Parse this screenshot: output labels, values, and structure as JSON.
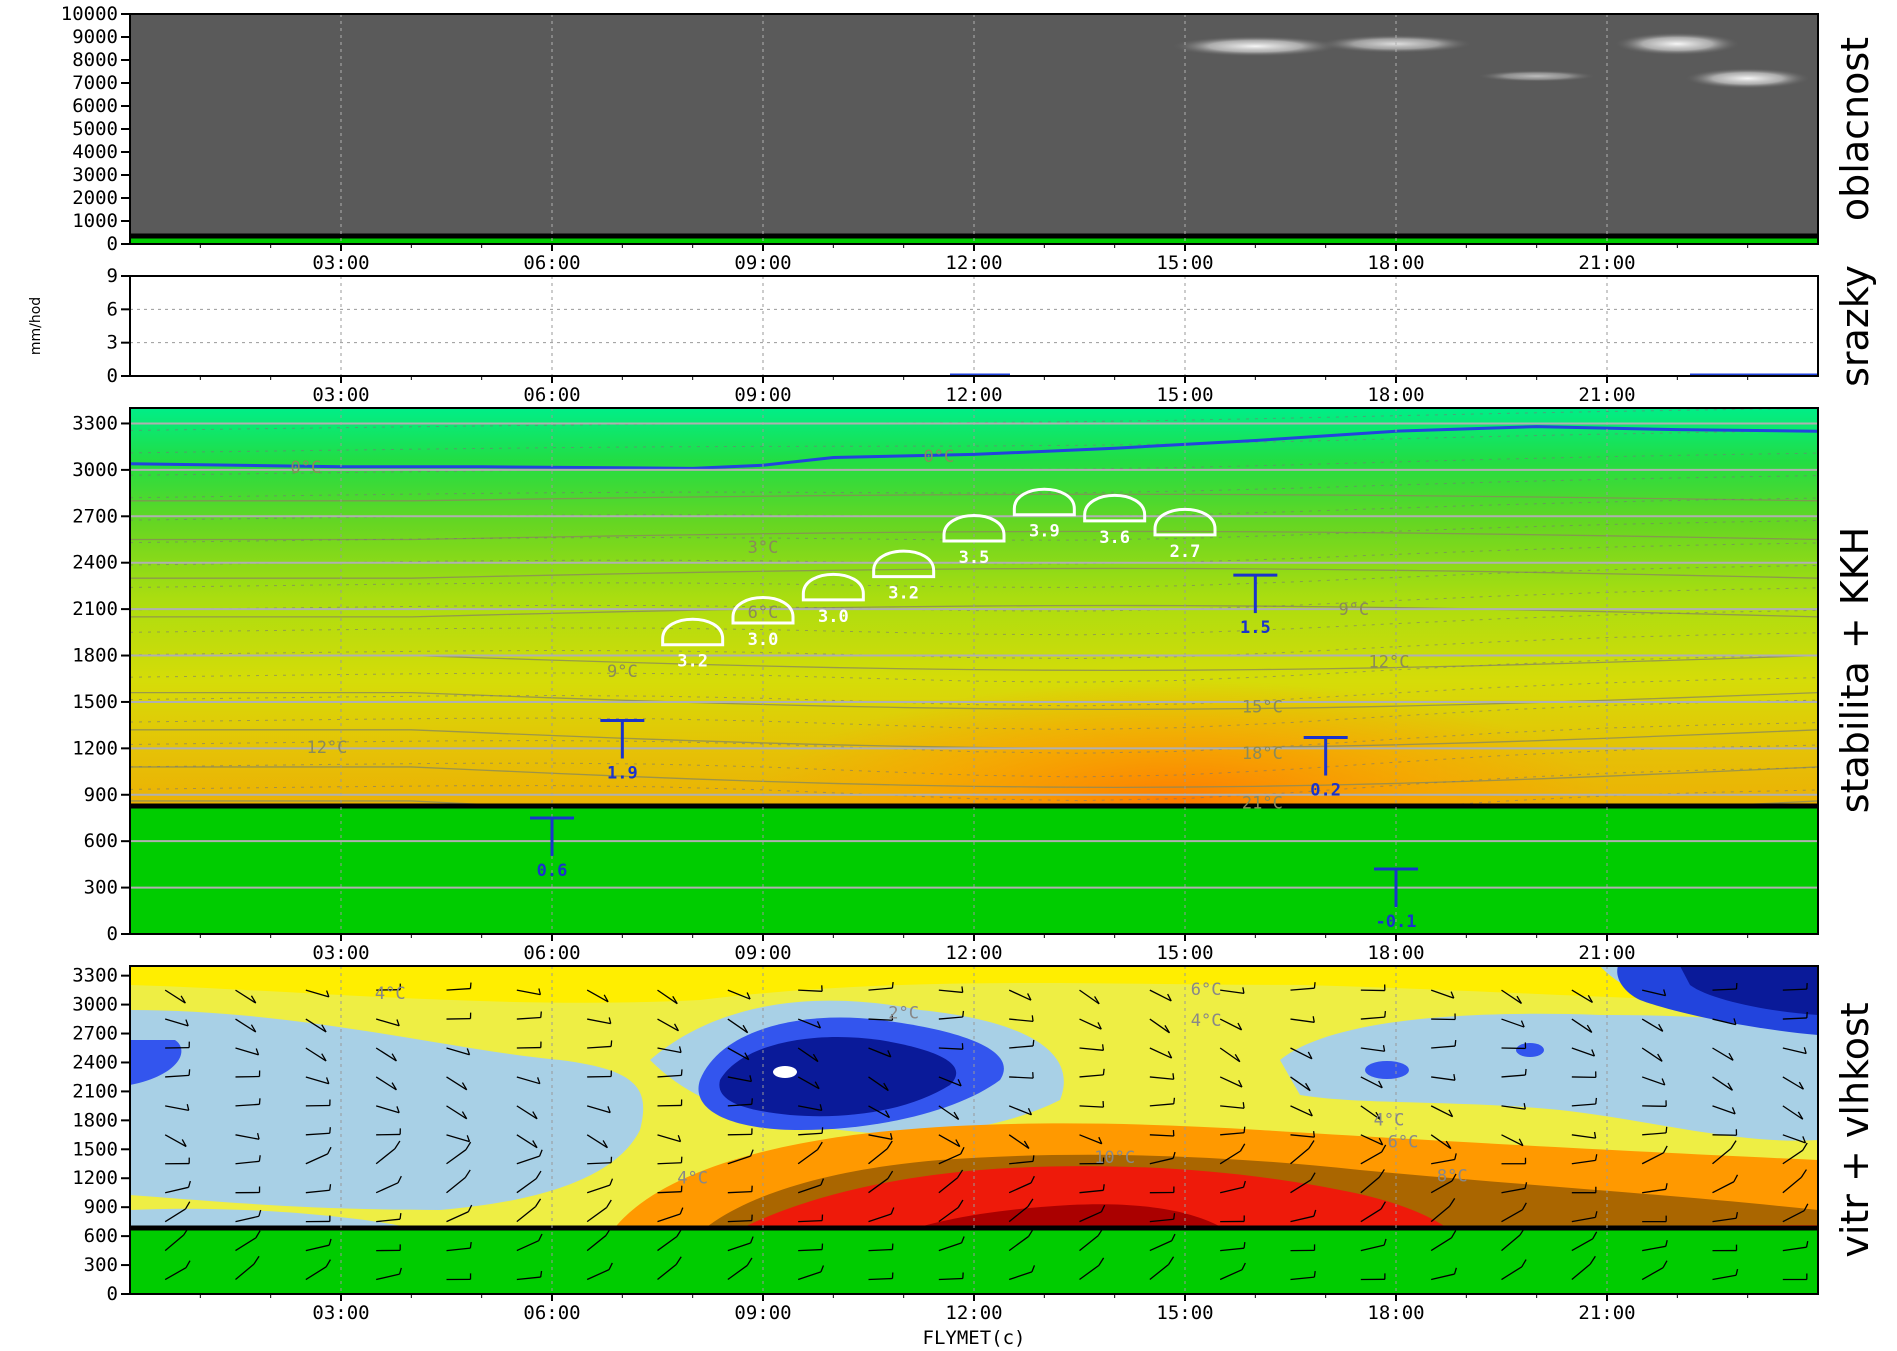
{
  "footer": "FLYMET(c)",
  "colors": {
    "cloud_bg": "#5a5a5a",
    "ground": "#00cc00",
    "iso0": "#2244dd",
    "kkh_blue": "#1a33cc",
    "kkh_white": "#ffffff"
  },
  "chart_data": [
    {
      "type": "heatmap",
      "title": "oblacnost",
      "ylabel": "",
      "ylim": [
        0,
        10000
      ],
      "yticks": [
        "0",
        "1000",
        "2000",
        "3000",
        "4000",
        "5000",
        "6000",
        "7000",
        "8000",
        "9000",
        "10000"
      ],
      "xticks": [
        "03:00",
        "06:00",
        "09:00",
        "12:00",
        "15:00",
        "18:00",
        "21:00"
      ],
      "xlim_hours": [
        0,
        24
      ],
      "ground_m": 400,
      "cloud_patches": [
        {
          "x": 16.0,
          "y": 8600,
          "w": 2.4,
          "h": 900,
          "intensity": 0.95
        },
        {
          "x": 18.0,
          "y": 8700,
          "w": 2.2,
          "h": 800,
          "intensity": 0.8
        },
        {
          "x": 20.0,
          "y": 7300,
          "w": 1.7,
          "h": 500,
          "intensity": 0.6
        },
        {
          "x": 22.0,
          "y": 8700,
          "w": 1.8,
          "h": 1000,
          "intensity": 0.95
        },
        {
          "x": 23.0,
          "y": 7200,
          "w": 1.8,
          "h": 900,
          "intensity": 0.95
        }
      ]
    },
    {
      "type": "line",
      "title": "srazky",
      "ylabel": "mm/hod",
      "ylim": [
        0,
        9
      ],
      "yticks": [
        "0",
        "3",
        "6",
        "9"
      ],
      "xticks": [
        "03:00",
        "06:00",
        "09:00",
        "12:00",
        "15:00",
        "18:00",
        "21:00"
      ],
      "values": []
    },
    {
      "type": "heatmap",
      "title": "stabilita + KKH",
      "ylim": [
        0,
        3400
      ],
      "yticks": [
        "0",
        "300",
        "600",
        "900",
        "1200",
        "1500",
        "1800",
        "2100",
        "2400",
        "2700",
        "3000",
        "3300"
      ],
      "xticks": [
        "03:00",
        "06:00",
        "09:00",
        "12:00",
        "15:00",
        "18:00",
        "21:00"
      ],
      "ground_m": 400,
      "zero_isotherm": [
        [
          0,
          3040
        ],
        [
          3,
          3020
        ],
        [
          5,
          3020
        ],
        [
          8,
          3010
        ],
        [
          9,
          3030
        ],
        [
          10,
          3080
        ],
        [
          12,
          3100
        ],
        [
          14,
          3140
        ],
        [
          16,
          3190
        ],
        [
          18,
          3250
        ],
        [
          20,
          3280
        ],
        [
          22,
          3260
        ],
        [
          24,
          3250
        ]
      ],
      "isotherm_labels": [
        {
          "x": 2.5,
          "y": 3020,
          "text": "0°C"
        },
        {
          "x": 11.5,
          "y": 3090,
          "text": "0°C"
        },
        {
          "x": 9.0,
          "y": 2500,
          "text": "3°C"
        },
        {
          "x": 9.0,
          "y": 2080,
          "text": "6°C"
        },
        {
          "x": 17.4,
          "y": 2100,
          "text": "9°C"
        },
        {
          "x": 7.0,
          "y": 1700,
          "text": "9°C"
        },
        {
          "x": 17.9,
          "y": 1760,
          "text": "12°C"
        },
        {
          "x": 2.8,
          "y": 1210,
          "text": "12°C"
        },
        {
          "x": 16.1,
          "y": 1470,
          "text": "15°C"
        },
        {
          "x": 16.1,
          "y": 1170,
          "text": "18°C"
        },
        {
          "x": 16.1,
          "y": 850,
          "text": "21°C"
        }
      ],
      "cumulus": [
        {
          "x": 8.0,
          "base": 1870,
          "value": "3.2"
        },
        {
          "x": 9.0,
          "base": 2010,
          "value": "3.0"
        },
        {
          "x": 10.0,
          "base": 2160,
          "value": "3.0"
        },
        {
          "x": 11.0,
          "base": 2310,
          "value": "3.2"
        },
        {
          "x": 12.0,
          "base": 2540,
          "value": "3.5"
        },
        {
          "x": 13.0,
          "base": 2710,
          "value": "3.9"
        },
        {
          "x": 14.0,
          "base": 2670,
          "value": "3.6"
        },
        {
          "x": 15.0,
          "base": 2580,
          "value": "2.7"
        }
      ],
      "thermals": [
        {
          "x": 6.0,
          "top": 750,
          "value": "0.6"
        },
        {
          "x": 7.0,
          "top": 1380,
          "value": "1.9"
        },
        {
          "x": 16.0,
          "top": 2320,
          "value": "1.5"
        },
        {
          "x": 17.0,
          "top": 1270,
          "value": "0.2"
        },
        {
          "x": 18.0,
          "top": 420,
          "value": "-0.1"
        }
      ]
    },
    {
      "type": "heatmap",
      "title": "vitr + vlhkost",
      "ylim": [
        0,
        3400
      ],
      "yticks": [
        "0",
        "300",
        "600",
        "900",
        "1200",
        "1500",
        "1800",
        "2100",
        "2400",
        "2700",
        "3000",
        "3300"
      ],
      "xticks": [
        "03:00",
        "06:00",
        "09:00",
        "12:00",
        "15:00",
        "18:00",
        "21:00"
      ],
      "ground_m": 400,
      "contour_labels": [
        {
          "x": 3.7,
          "y": 3120,
          "text": "4°C"
        },
        {
          "x": 11.0,
          "y": 2920,
          "text": "2°C"
        },
        {
          "x": 15.3,
          "y": 3160,
          "text": "6°C"
        },
        {
          "x": 15.3,
          "y": 2840,
          "text": "4°C"
        },
        {
          "x": 17.9,
          "y": 1810,
          "text": "4°C"
        },
        {
          "x": 18.1,
          "y": 1580,
          "text": "6°C"
        },
        {
          "x": 8.0,
          "y": 1210,
          "text": "4°C"
        },
        {
          "x": 14.0,
          "y": 1420,
          "text": "10°C"
        },
        {
          "x": 18.8,
          "y": 1230,
          "text": "8°C"
        }
      ]
    }
  ]
}
